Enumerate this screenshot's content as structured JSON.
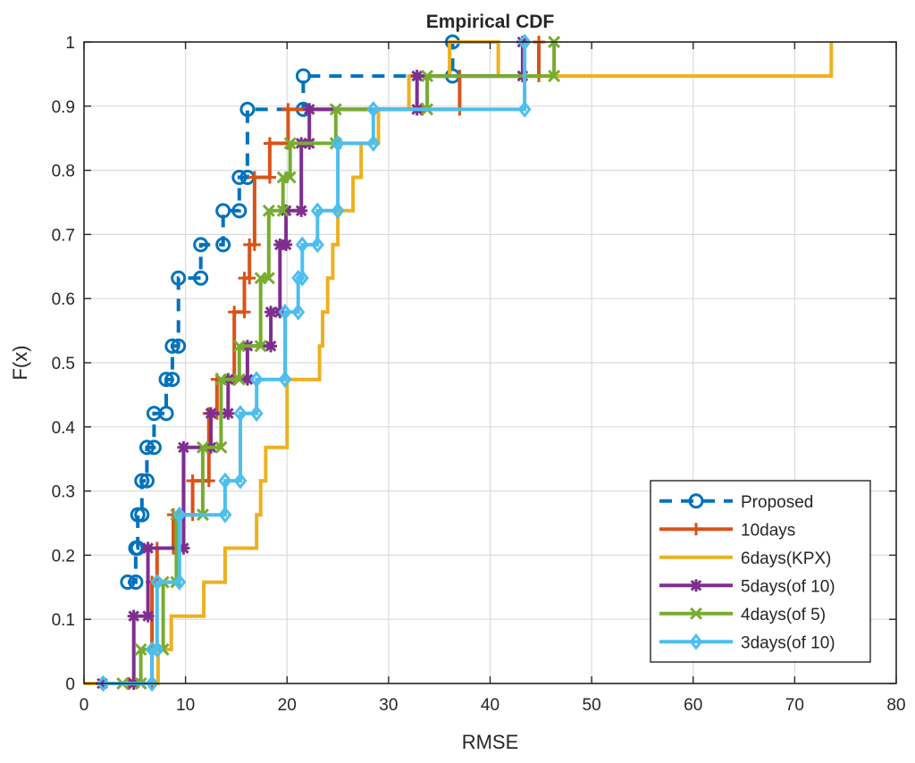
{
  "chart_data": {
    "type": "line",
    "title": "Empirical CDF",
    "xlabel": "RMSE",
    "ylabel": "F(x)",
    "xlim": [
      0,
      80
    ],
    "ylim": [
      0,
      1
    ],
    "grid": true,
    "legend_position": "bottom-right",
    "x_ticks": [
      "0",
      "10",
      "20",
      "30",
      "40",
      "50",
      "60",
      "70",
      "80"
    ],
    "y_ticks": [
      "0",
      "0.1",
      "0.2",
      "0.3",
      "0.4",
      "0.5",
      "0.6",
      "0.7",
      "0.8",
      "0.9",
      "1"
    ],
    "series": [
      {
        "name": "Proposed",
        "color": "#0072BD",
        "line_style": "dashed",
        "marker": "circle",
        "x": [
          4.3,
          5.1,
          5.3,
          5.7,
          6.2,
          6.9,
          8.1,
          8.7,
          9.3,
          11.5,
          13.7,
          15.3,
          16.1,
          21.6,
          36.3
        ],
        "y": [
          0.158,
          0.211,
          0.263,
          0.316,
          0.368,
          0.421,
          0.474,
          0.526,
          0.632,
          0.684,
          0.737,
          0.789,
          0.895,
          0.947,
          1.0
        ]
      },
      {
        "name": "10days",
        "color": "#D95319",
        "line_style": "solid",
        "marker": "plus",
        "x": [
          4.4,
          6.7,
          7.2,
          8.8,
          10.7,
          12.3,
          13.1,
          14.8,
          15.8,
          16.3,
          16.8,
          18.3,
          20.1,
          33.3,
          37.0,
          44.8
        ],
        "y": [
          0.0,
          0.158,
          0.211,
          0.263,
          0.316,
          0.421,
          0.474,
          0.579,
          0.632,
          0.684,
          0.789,
          0.842,
          0.895,
          0.895,
          0.947,
          1.0
        ]
      },
      {
        "name": "6days(KPX)",
        "color": "#EDB120",
        "line_style": "solid",
        "marker": "none",
        "x": [
          0.0,
          7.3,
          7.3,
          8.6,
          8.6,
          11.8,
          11.8,
          13.9,
          13.9,
          17.0,
          17.0,
          17.4,
          17.4,
          17.9,
          17.9,
          20.0,
          20.0,
          23.2,
          23.2,
          23.5,
          23.5,
          24.0,
          24.0,
          24.5,
          24.5,
          25.0,
          25.0,
          26.5,
          26.5,
          27.3,
          27.3,
          29.0,
          29.0,
          32.0,
          32.0,
          36.0,
          36.0,
          37.0,
          37.0,
          40.8,
          40.8,
          73.6,
          73.6
        ],
        "y": [
          0.0,
          0.0,
          0.053,
          0.053,
          0.105,
          0.105,
          0.158,
          0.158,
          0.211,
          0.211,
          0.263,
          0.263,
          0.316,
          0.316,
          0.368,
          0.368,
          0.474,
          0.474,
          0.526,
          0.526,
          0.579,
          0.579,
          0.632,
          0.632,
          0.684,
          0.684,
          0.737,
          0.737,
          0.789,
          0.789,
          0.842,
          0.842,
          0.895,
          0.895,
          0.947,
          0.947,
          1.0,
          1.0,
          1.0,
          1.0,
          0.947,
          0.947,
          1.0
        ]
      },
      {
        "name": "5days(of 10)",
        "color": "#7E2F8E",
        "line_style": "solid",
        "marker": "star",
        "x": [
          1.8,
          4.9,
          6.3,
          9.8,
          12.5,
          14.2,
          16.1,
          18.4,
          19.3,
          19.9,
          21.4,
          22.2,
          32.8,
          43.2
        ],
        "y": [
          0.0,
          0.105,
          0.211,
          0.368,
          0.421,
          0.474,
          0.526,
          0.579,
          0.684,
          0.737,
          0.842,
          0.895,
          0.947,
          1.0
        ]
      },
      {
        "name": "4days(of 5)",
        "color": "#77AC30",
        "line_style": "solid",
        "marker": "x",
        "x": [
          3.8,
          5.6,
          7.8,
          9.1,
          11.7,
          13.5,
          15.3,
          17.4,
          18.2,
          19.6,
          20.3,
          24.8,
          33.8,
          46.3
        ],
        "y": [
          0.0,
          0.053,
          0.158,
          0.263,
          0.368,
          0.474,
          0.526,
          0.632,
          0.737,
          0.789,
          0.842,
          0.895,
          0.947,
          1.0
        ]
      },
      {
        "name": "3days(of 10)",
        "color": "#4DBEEE",
        "line_style": "solid",
        "marker": "diamond",
        "x": [
          1.9,
          6.7,
          7.2,
          9.4,
          13.9,
          15.4,
          17.0,
          19.8,
          21.1,
          21.5,
          23.0,
          25.0,
          28.5,
          43.4
        ],
        "y": [
          0.0,
          0.053,
          0.158,
          0.263,
          0.316,
          0.421,
          0.474,
          0.579,
          0.632,
          0.684,
          0.737,
          0.842,
          0.895,
          1.0
        ]
      }
    ]
  }
}
